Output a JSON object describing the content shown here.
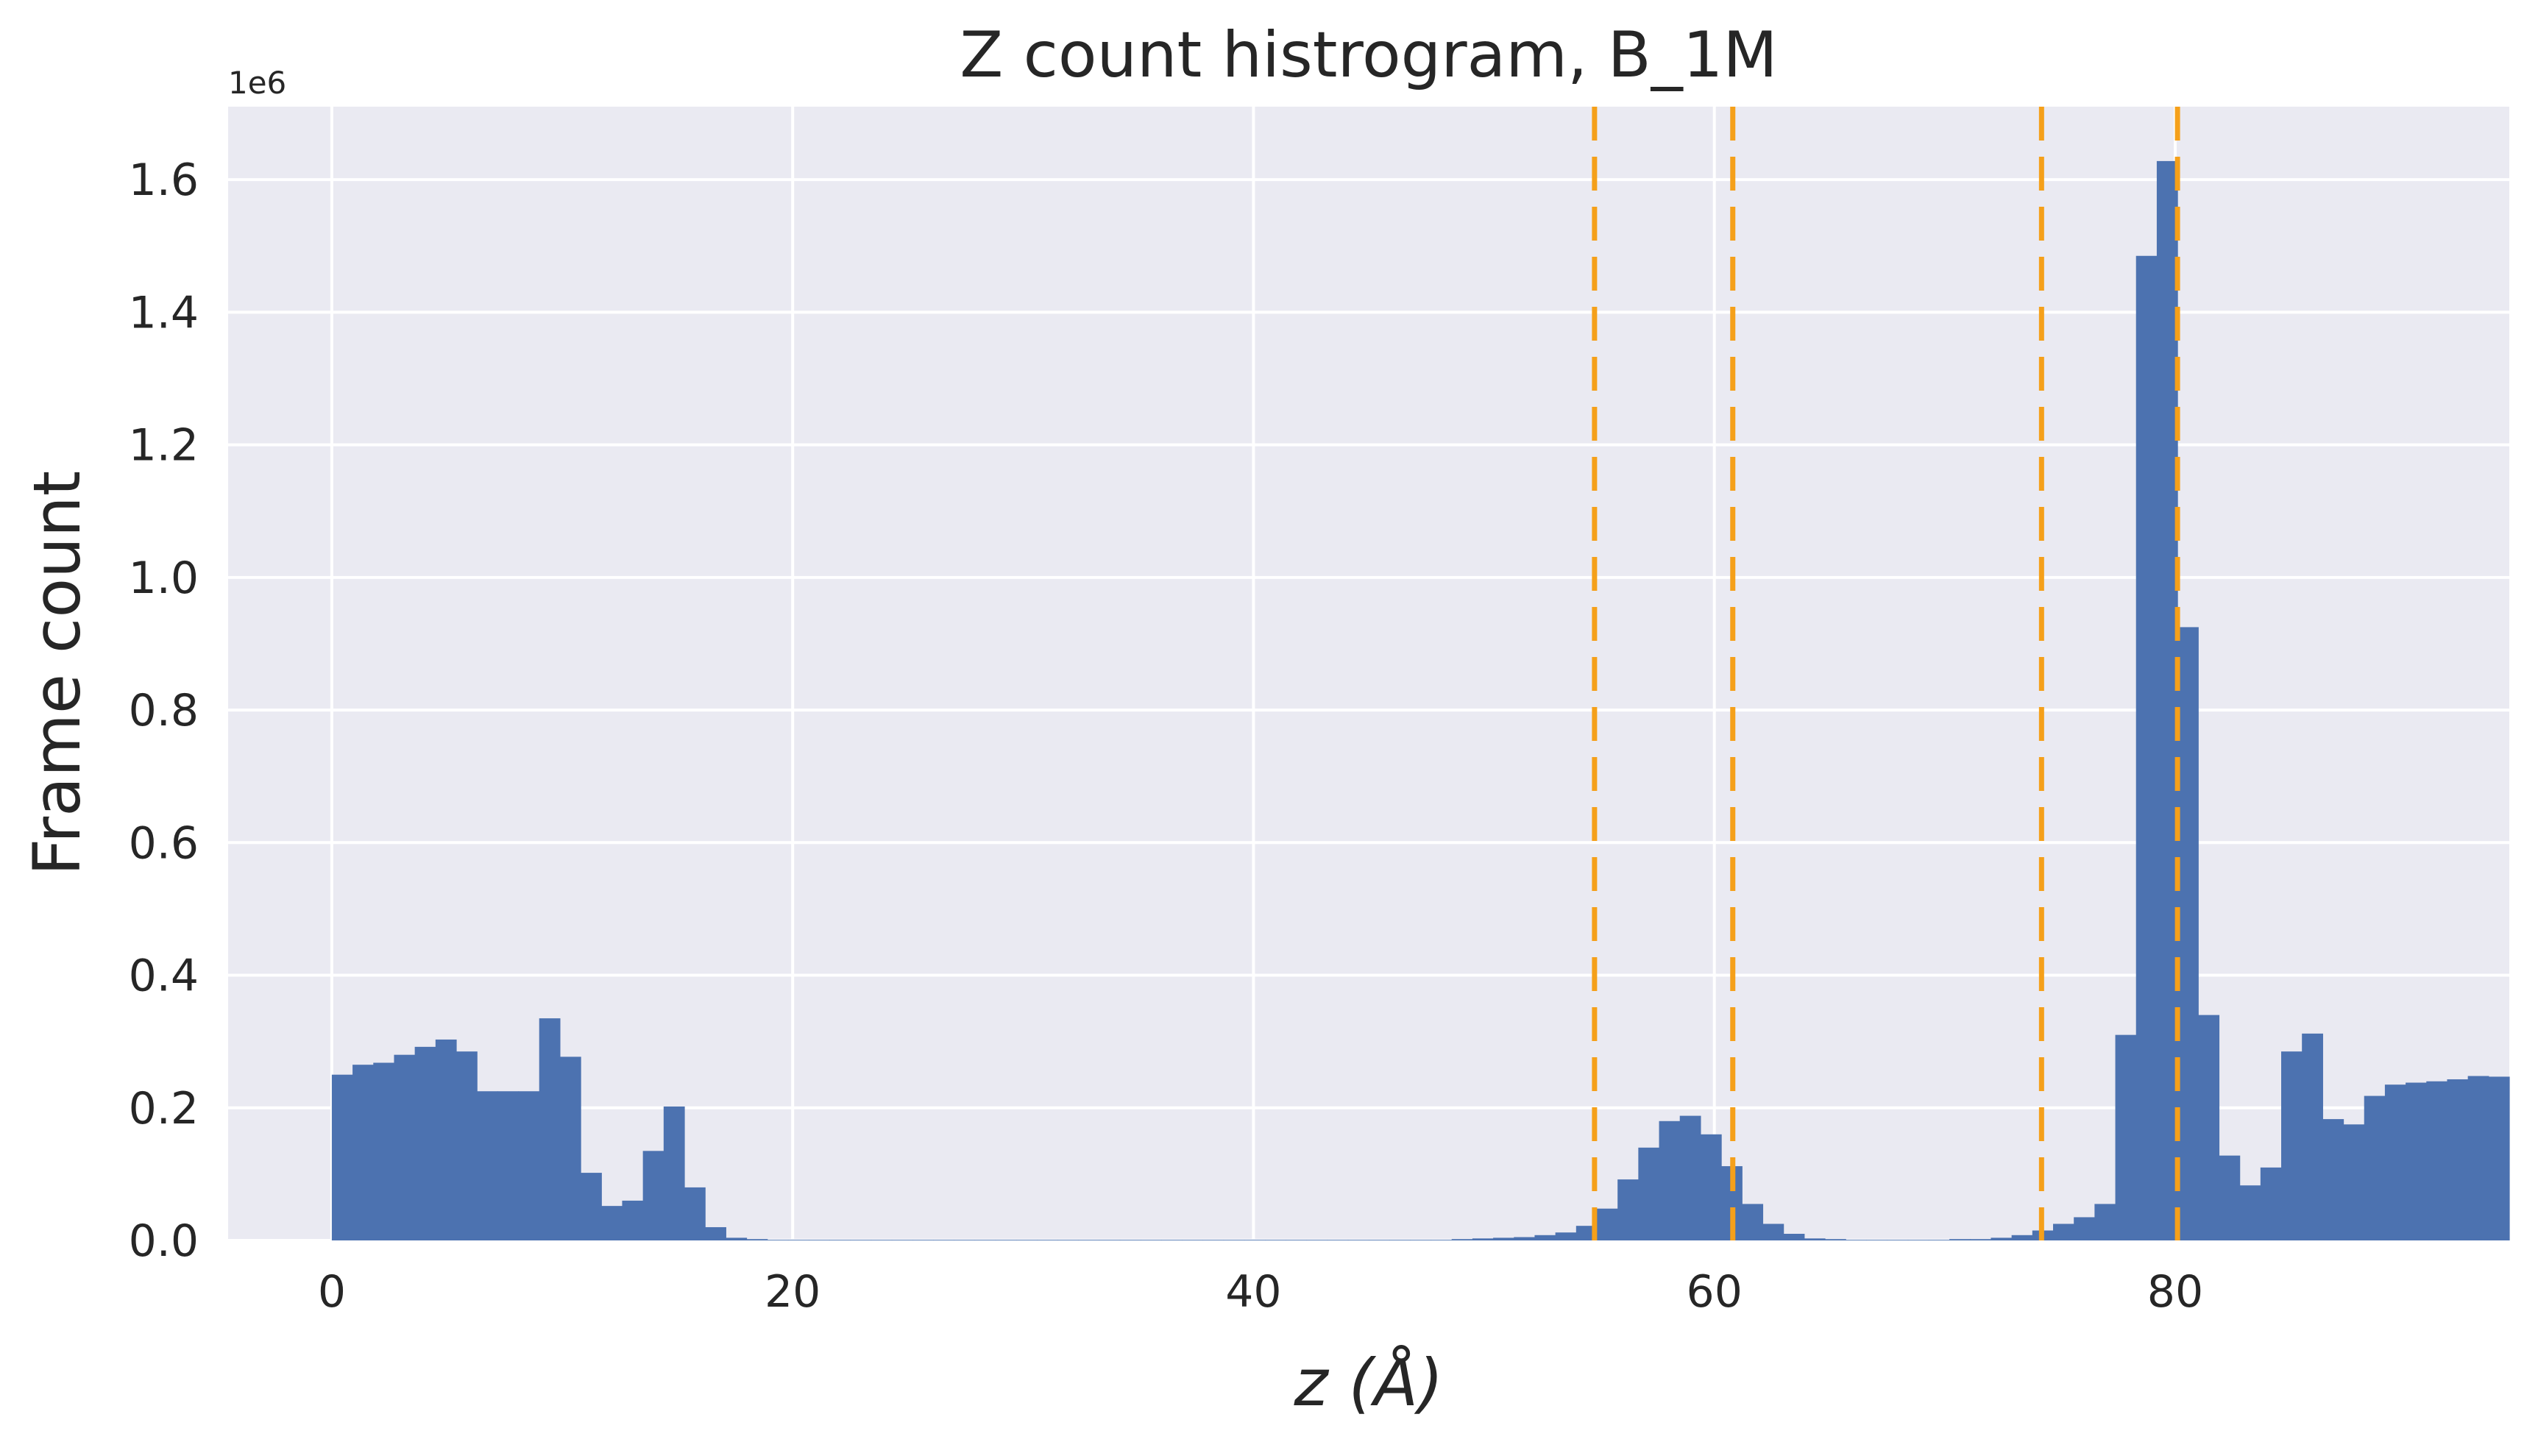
{
  "chart_data": {
    "type": "bar",
    "title": "Z count histrogram, B_1M",
    "xlabel": "z (Å)",
    "ylabel": "Frame count",
    "y_offset_text": "1e6",
    "xlim": [
      -4.5,
      94.5
    ],
    "ylim": [
      0,
      1.71
    ],
    "y_scale_multiplier": 1000000,
    "x_ticks": [
      0,
      20,
      40,
      60,
      80
    ],
    "x_tick_labels": [
      "0",
      "20",
      "40",
      "60",
      "80"
    ],
    "y_ticks": [
      0.0,
      0.2,
      0.4,
      0.6,
      0.8,
      1.0,
      1.2,
      1.4,
      1.6
    ],
    "y_tick_labels": [
      "0.0",
      "0.2",
      "0.4",
      "0.6",
      "0.8",
      "1.0",
      "1.2",
      "1.4",
      "1.6"
    ],
    "grid": true,
    "bin_width": 0.9,
    "bin_start": 0,
    "series": [
      {
        "values": [
          0.25,
          0.265,
          0.268,
          0.28,
          0.292,
          0.303,
          0.285,
          0.225,
          0.225,
          0.225,
          0.335,
          0.277,
          0.102,
          0.052,
          0.06,
          0.135,
          0.202,
          0.08,
          0.02,
          0.004,
          0.002,
          0.001,
          0.001,
          0.001,
          0.001,
          0.001,
          0.001,
          0.001,
          0.001,
          0.001,
          0.001,
          0.001,
          0.001,
          0.001,
          0.001,
          0.001,
          0.001,
          0.001,
          0.001,
          0.001,
          0.001,
          0.001,
          0.001,
          0.001,
          0.001,
          0.001,
          0.001,
          0.001,
          0.001,
          0.001,
          0.001,
          0.001,
          0.001,
          0.001,
          0.002,
          0.003,
          0.004,
          0.005,
          0.008,
          0.012,
          0.022,
          0.048,
          0.092,
          0.14,
          0.18,
          0.188,
          0.16,
          0.112,
          0.055,
          0.025,
          0.01,
          0.003,
          0.002,
          0.001,
          0.001,
          0.001,
          0.001,
          0.001,
          0.002,
          0.002,
          0.004,
          0.008,
          0.015,
          0.025,
          0.035,
          0.055,
          0.31,
          1.485,
          1.628,
          0.925,
          0.34,
          0.128,
          0.083,
          0.11,
          0.285,
          0.312,
          0.183,
          0.175,
          0.218,
          0.235,
          0.238,
          0.24,
          0.243,
          0.248,
          0.247
        ]
      }
    ],
    "vlines": [
      54.8,
      60.8,
      74.2,
      80.1
    ],
    "colors": {
      "bar": "#4c72b0",
      "vline": "#f5a01a",
      "plot_bg": "#eaeaf2",
      "grid": "#ffffff",
      "text": "#262626"
    }
  }
}
